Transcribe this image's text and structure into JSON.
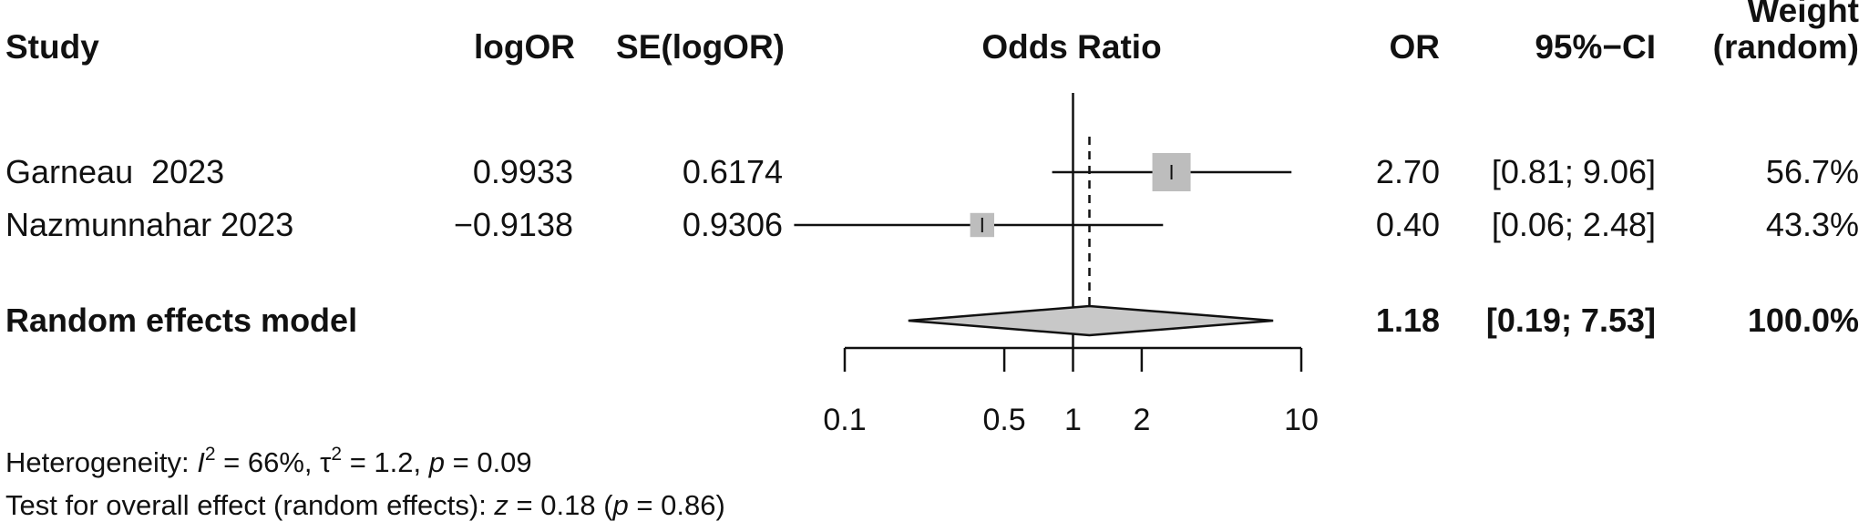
{
  "chart_data": {
    "type": "forest",
    "title": "",
    "xlabel": "Odds Ratio",
    "scale": "log",
    "xlim": [
      0.1,
      10
    ],
    "x_ticks": [
      0.1,
      0.5,
      1,
      2,
      10
    ],
    "x_tick_labels": [
      "0.1",
      "0.5",
      "1",
      "2",
      "10"
    ],
    "null_value": 1,
    "pooled_value": 1.18,
    "columns": {
      "study": "Study",
      "logor": "logOR",
      "se": "SE(logOR)",
      "plot": "Odds Ratio",
      "or": "OR",
      "ci": "95%−CI",
      "weight_line1": "Weight",
      "weight_line2": "(random)"
    },
    "studies": [
      {
        "name": "Garneau  2023",
        "logor": "0.9933",
        "se": "0.6174",
        "or": 2.7,
        "ci_low": 0.81,
        "ci_high": 9.06,
        "or_text": "2.70",
        "ci_text": "[0.81; 9.06]",
        "weight": 56.7,
        "weight_text": "56.7%"
      },
      {
        "name": "Nazmunnahar 2023",
        "logor": "−0.9138",
        "se": "0.9306",
        "or": 0.4,
        "ci_low": 0.06,
        "ci_high": 2.48,
        "or_text": "0.40",
        "ci_text": "[0.06; 2.48]",
        "weight": 43.3,
        "weight_text": "43.3%"
      }
    ],
    "pooled": {
      "name": "Random effects model",
      "or": 1.18,
      "ci_low": 0.19,
      "ci_high": 7.53,
      "or_text": "1.18",
      "ci_text": "[0.19; 7.53]",
      "weight_text": "100.0%"
    },
    "heterogeneity": {
      "prefix": "Heterogeneity: ",
      "i2_symbol": "I",
      "i2_sup": "2",
      "i2_value": " = 66%, ",
      "tau2_symbol": "τ",
      "tau2_sup": "2",
      "tau2_value": " = 1.2, ",
      "p_symbol": "p",
      "p_value": " = 0.09"
    },
    "overall_effect": {
      "prefix": "Test for overall effect (random effects): ",
      "z_symbol": "z",
      "z_value": " = 0.18 (",
      "p_symbol": "p",
      "p_value": " = 0.86)"
    }
  },
  "colors": {
    "text": "#111111",
    "box": "#bdbdbd",
    "diamond": "#c8c8c8",
    "line": "#111111"
  }
}
